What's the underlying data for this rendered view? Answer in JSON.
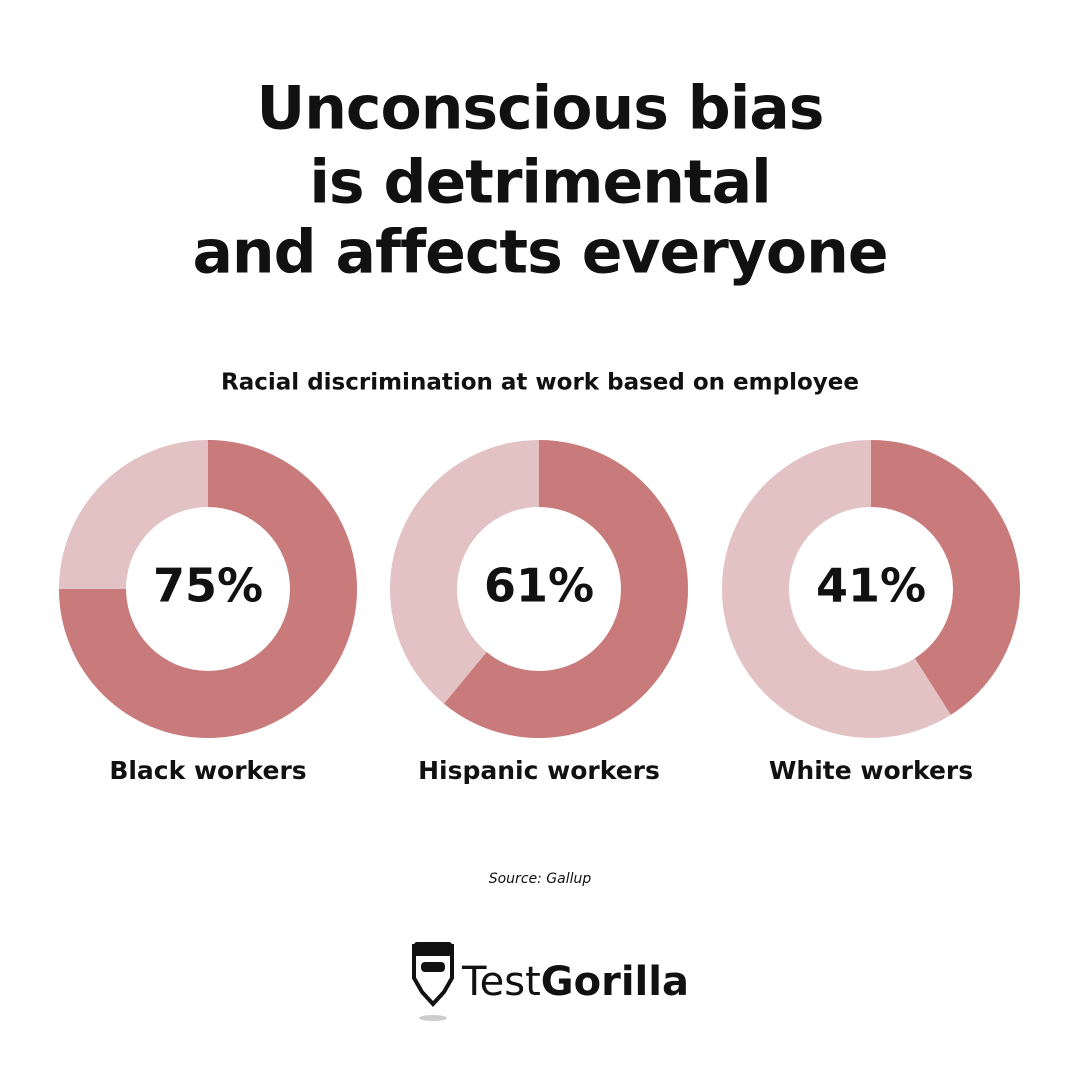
{
  "title": [
    "Unconscious bias",
    "is detrimental",
    "and affects everyone"
  ],
  "subtitle": "Racial discrimination at work based on employee",
  "source": "Source: Gallup",
  "brand": {
    "light": "Test",
    "bold": "Gorilla"
  },
  "chart_data": [
    {
      "type": "donut",
      "categories": [
        "Black workers"
      ],
      "values": [
        75
      ],
      "value_labels": [
        "75%"
      ],
      "color": "#c97b7b",
      "track_color": "#e3c2c4"
    },
    {
      "type": "donut",
      "categories": [
        "Hispanic workers"
      ],
      "values": [
        61
      ],
      "value_labels": [
        "61%"
      ],
      "color": "#c97b7b",
      "track_color": "#e3c2c4"
    },
    {
      "type": "donut",
      "categories": [
        "White workers"
      ],
      "values": [
        41
      ],
      "value_labels": [
        "41%"
      ],
      "color": "#c97b7b",
      "track_color": "#e3c2c4"
    }
  ]
}
